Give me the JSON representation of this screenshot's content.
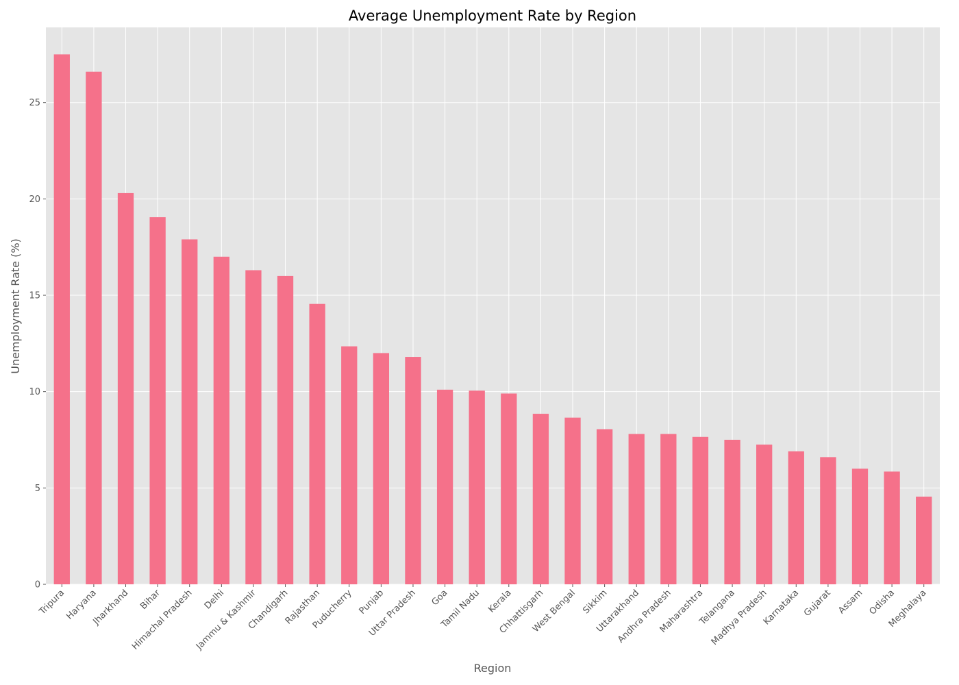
{
  "chart_data": {
    "type": "bar",
    "title": "Average Unemployment Rate by Region",
    "xlabel": "Region",
    "ylabel": "Unemployment Rate (%)",
    "categories": [
      "Tripura",
      "Haryana",
      "Jharkhand",
      "Bihar",
      "Himachal Pradesh",
      "Delhi",
      "Jammu & Kashmir",
      "Chandigarh",
      "Rajasthan",
      "Puducherry",
      "Punjab",
      "Uttar Pradesh",
      "Goa",
      "Tamil Nadu",
      "Kerala",
      "Chhattisgarh",
      "West Bengal",
      "Sikkim",
      "Uttarakhand",
      "Andhra Pradesh",
      "Maharashtra",
      "Telangana",
      "Madhya Pradesh",
      "Karnataka",
      "Gujarat",
      "Assam",
      "Odisha",
      "Meghalaya"
    ],
    "values": [
      27.5,
      26.6,
      20.3,
      19.05,
      17.9,
      17.0,
      16.3,
      16.0,
      14.55,
      12.35,
      12.0,
      11.8,
      10.1,
      10.05,
      9.9,
      8.85,
      8.65,
      8.05,
      7.8,
      7.8,
      7.65,
      7.5,
      7.25,
      6.9,
      6.6,
      6.0,
      5.85,
      4.55
    ],
    "yticks": [
      0,
      5,
      10,
      15,
      20,
      25
    ],
    "ylim": [
      0,
      28.9
    ],
    "grid": true,
    "style": "ggplot",
    "colors": {
      "bar": "#f5718a",
      "background": "#e5e5e5",
      "grid": "#ffffff"
    }
  }
}
